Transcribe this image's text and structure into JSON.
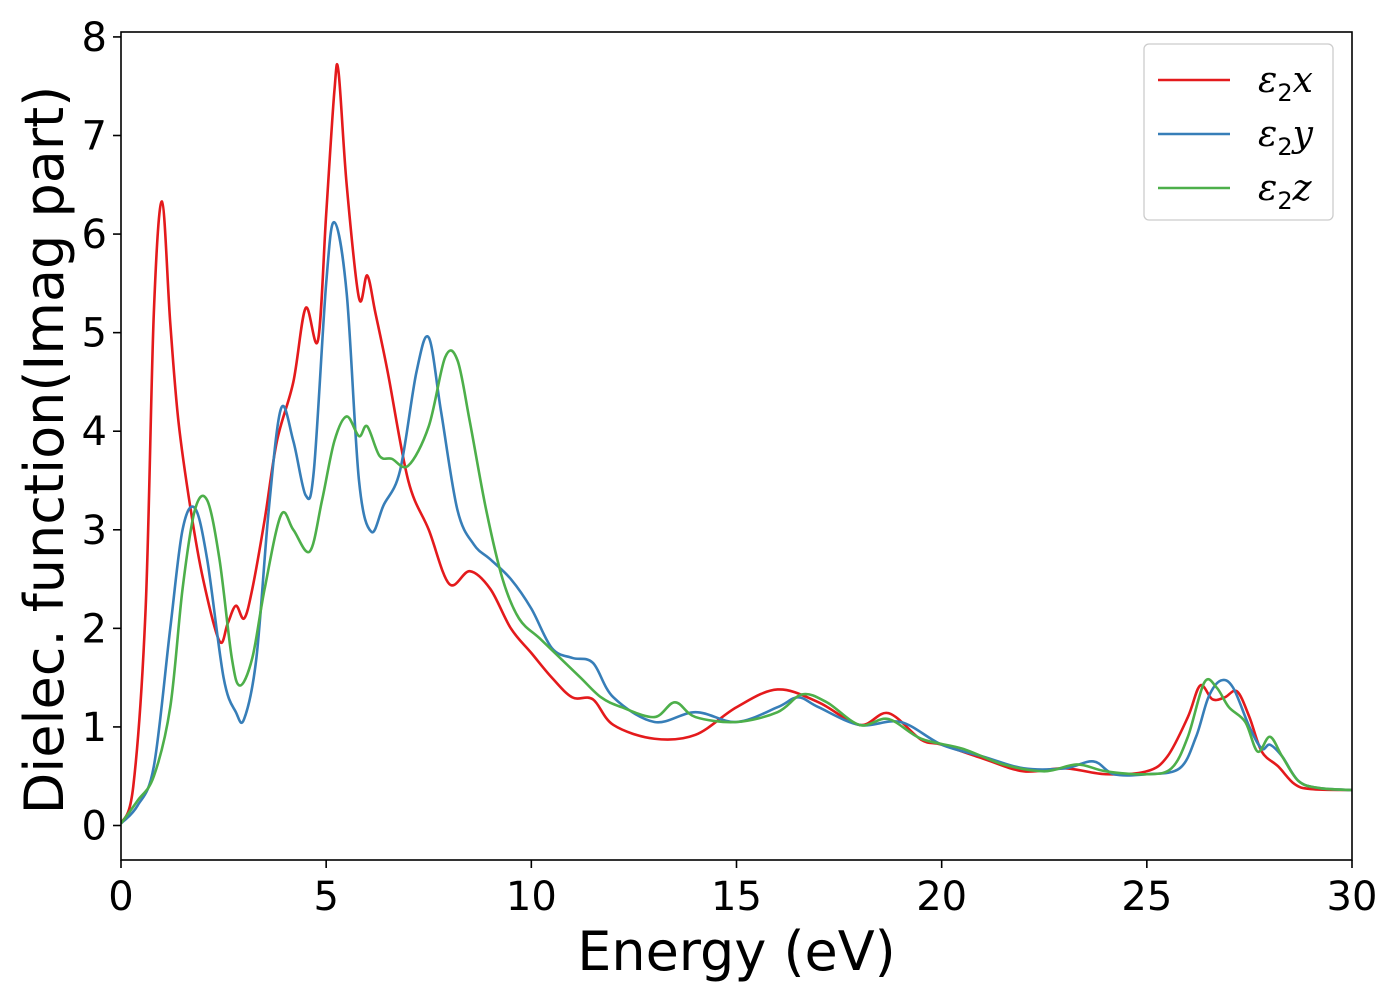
{
  "chart_data": {
    "type": "line",
    "xlabel": "Energy (eV)",
    "ylabel": "Dielec. function(Imag part)",
    "xlim": [
      0,
      30
    ],
    "ylim": [
      -0.35,
      8.05
    ],
    "xticks": [
      0,
      5,
      10,
      15,
      20,
      25,
      30
    ],
    "yticks": [
      0,
      1,
      2,
      3,
      4,
      5,
      6,
      7,
      8
    ],
    "grid": false,
    "legend_position": "top-right",
    "series": [
      {
        "name": "ε2x",
        "legend_symbol": "ε",
        "legend_sub": "2",
        "legend_var": "x",
        "color": "#e41a1c",
        "x": [
          0,
          0.3,
          0.6,
          0.8,
          1.0,
          1.2,
          1.4,
          1.7,
          2.0,
          2.4,
          2.6,
          2.8,
          3.0,
          3.2,
          3.5,
          3.8,
          4.2,
          4.5,
          4.8,
          5.0,
          5.2,
          5.3,
          5.5,
          5.8,
          6.0,
          6.2,
          6.5,
          7.0,
          7.5,
          8.0,
          8.5,
          9.0,
          9.5,
          10,
          10.5,
          11,
          11.5,
          12,
          13,
          14,
          15,
          16,
          17,
          18,
          18.7,
          19.5,
          20,
          21,
          22,
          23,
          24,
          25,
          25.5,
          26,
          26.3,
          26.6,
          26.9,
          27.2,
          27.5,
          27.8,
          28.2,
          28.6,
          29,
          30
        ],
        "y": [
          0.02,
          0.4,
          2.2,
          5.2,
          6.33,
          5.1,
          4.1,
          3.2,
          2.5,
          1.87,
          2.05,
          2.23,
          2.1,
          2.4,
          3.1,
          3.9,
          4.5,
          5.25,
          4.92,
          6.2,
          7.45,
          7.65,
          6.5,
          5.35,
          5.58,
          5.2,
          4.6,
          3.5,
          3.0,
          2.45,
          2.58,
          2.4,
          2.0,
          1.75,
          1.5,
          1.3,
          1.28,
          1.02,
          0.88,
          0.92,
          1.2,
          1.38,
          1.25,
          1.02,
          1.14,
          0.87,
          0.82,
          0.68,
          0.55,
          0.58,
          0.52,
          0.55,
          0.7,
          1.1,
          1.42,
          1.28,
          1.3,
          1.36,
          1.1,
          0.75,
          0.6,
          0.42,
          0.37,
          0.36
        ]
      },
      {
        "name": "ε2y",
        "legend_symbol": "ε",
        "legend_sub": "2",
        "legend_var": "y",
        "color": "#377eb8",
        "x": [
          0,
          0.4,
          0.8,
          1.2,
          1.5,
          1.8,
          2.1,
          2.5,
          2.8,
          3.0,
          3.3,
          3.6,
          3.9,
          4.2,
          4.5,
          4.7,
          5.0,
          5.2,
          5.5,
          5.8,
          6.1,
          6.4,
          6.8,
          7.2,
          7.5,
          7.8,
          8.2,
          8.6,
          9.0,
          9.5,
          10,
          10.5,
          11,
          11.5,
          12,
          13,
          14,
          15,
          16,
          16.5,
          17,
          18,
          19,
          20,
          21,
          22,
          23,
          23.7,
          24.2,
          25,
          25.8,
          26.2,
          26.5,
          26.8,
          27.1,
          27.5,
          27.8,
          28.0,
          28.3,
          28.7,
          29.2,
          30
        ],
        "y": [
          0.02,
          0.2,
          0.6,
          2.0,
          3.0,
          3.22,
          2.7,
          1.5,
          1.15,
          1.08,
          1.7,
          3.2,
          4.23,
          3.9,
          3.35,
          3.6,
          5.5,
          6.12,
          5.4,
          3.5,
          2.98,
          3.25,
          3.6,
          4.6,
          4.95,
          4.2,
          3.2,
          2.85,
          2.7,
          2.5,
          2.2,
          1.8,
          1.7,
          1.65,
          1.3,
          1.05,
          1.15,
          1.05,
          1.2,
          1.3,
          1.2,
          1.02,
          1.05,
          0.82,
          0.7,
          0.58,
          0.58,
          0.65,
          0.52,
          0.52,
          0.58,
          0.9,
          1.3,
          1.47,
          1.4,
          1.0,
          0.78,
          0.82,
          0.7,
          0.45,
          0.38,
          0.36
        ]
      },
      {
        "name": "ε2z",
        "legend_symbol": "ε",
        "legend_sub": "2",
        "legend_var": "z",
        "color": "#4daf4a",
        "x": [
          0,
          0.4,
          0.8,
          1.2,
          1.5,
          1.8,
          2.1,
          2.4,
          2.7,
          2.9,
          3.2,
          3.5,
          3.9,
          4.2,
          4.6,
          4.9,
          5.2,
          5.5,
          5.8,
          6.0,
          6.3,
          6.6,
          7.0,
          7.5,
          7.9,
          8.2,
          8.5,
          8.9,
          9.3,
          9.7,
          10.2,
          10.7,
          11.2,
          11.7,
          12.2,
          13,
          13.5,
          14,
          15,
          16,
          16.6,
          17.2,
          18,
          18.7,
          19.5,
          20.5,
          21.5,
          22.5,
          23.3,
          24,
          25,
          25.6,
          26.0,
          26.4,
          26.7,
          27.0,
          27.4,
          27.7,
          28.0,
          28.3,
          28.7,
          29.2,
          30
        ],
        "y": [
          0.02,
          0.25,
          0.5,
          1.2,
          2.4,
          3.2,
          3.3,
          2.7,
          1.7,
          1.42,
          1.7,
          2.4,
          3.15,
          3.0,
          2.78,
          3.3,
          3.9,
          4.15,
          3.95,
          4.05,
          3.75,
          3.72,
          3.65,
          4.05,
          4.75,
          4.72,
          4.1,
          3.2,
          2.5,
          2.1,
          1.9,
          1.7,
          1.5,
          1.3,
          1.2,
          1.1,
          1.25,
          1.1,
          1.05,
          1.15,
          1.33,
          1.25,
          1.02,
          1.08,
          0.88,
          0.78,
          0.62,
          0.55,
          0.62,
          0.55,
          0.52,
          0.58,
          0.9,
          1.45,
          1.4,
          1.2,
          1.05,
          0.75,
          0.9,
          0.7,
          0.45,
          0.38,
          0.36
        ]
      }
    ]
  }
}
